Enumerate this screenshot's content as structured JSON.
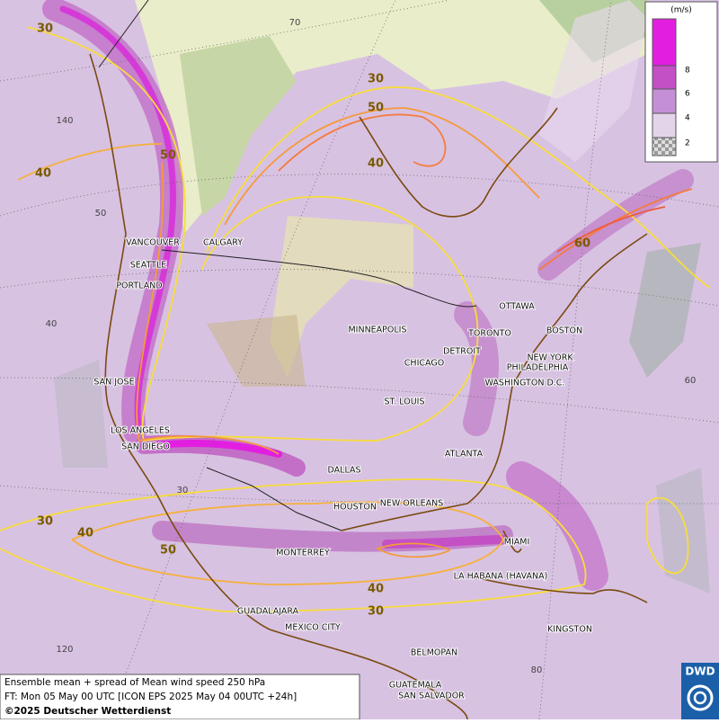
{
  "legend": {
    "unit": "(m/s)",
    "labels": [
      "8",
      "6",
      "4",
      "2"
    ]
  },
  "cities": [
    "VANCOUVER",
    "CALGARY",
    "SEATTLE",
    "PORTLAND",
    "MINNEAPOLIS",
    "OTTAWA",
    "TORONTO",
    "BOSTON",
    "DETROIT",
    "NEW YORK",
    "CHICAGO",
    "PHILADELPHIA",
    "SAN JOSE",
    "WASHINGTON D.C.",
    "ST. LOUIS",
    "LOS ANGELES",
    "SAN DIEGO",
    "ATLANTA",
    "DALLAS",
    "NEW ORLEANS",
    "HOUSTON",
    "MIAMI",
    "MONTERREY",
    "LA HABANA (HAVANA)",
    "GUADALAJARA",
    "MEXICO CITY",
    "KINGSTON",
    "BELMOPAN",
    "GUATEMALA",
    "SAN SALVADOR"
  ],
  "contour_labels": [
    "30",
    "30",
    "50",
    "50",
    "40",
    "40",
    "60",
    "30",
    "40",
    "50",
    "40",
    "30"
  ],
  "grid_labels": [
    "70",
    "140",
    "50",
    "40",
    "60",
    "30",
    "120",
    "80"
  ],
  "footer": {
    "line1": "Ensemble mean + spread of Mean wind speed 250 hPa",
    "line2": "FT: Mon 05 May 00 UTC [ICON EPS 2025 May 04 00UTC +24h]",
    "line3": "©2025 Deutscher Wetterdienst"
  },
  "logo": "DWD"
}
